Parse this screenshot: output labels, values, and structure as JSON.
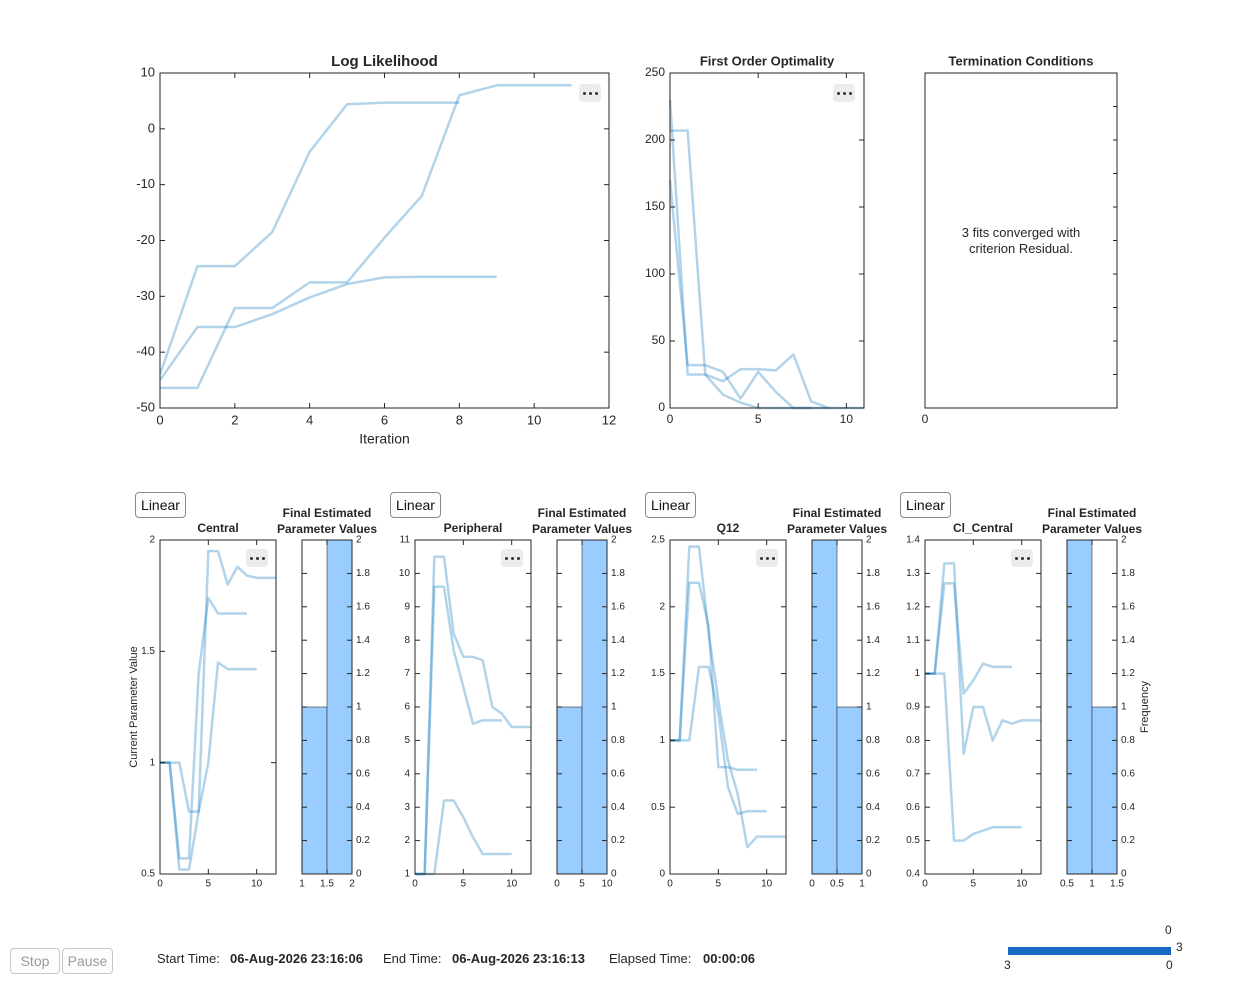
{
  "chart_data": [
    {
      "type": "line",
      "title": "Log Likelihood",
      "xlabel": "Iteration",
      "color": "#0072bd",
      "opacity": 0.3,
      "x": [
        0,
        1,
        2,
        3,
        4,
        5,
        6,
        7,
        8,
        9,
        10,
        11
      ],
      "xlim": [
        0,
        12
      ],
      "xticks": [
        0,
        2,
        4,
        6,
        8,
        10,
        12
      ],
      "ylim": [
        -50,
        10
      ],
      "yticks": [
        -50,
        -40,
        -30,
        -20,
        -10,
        0,
        10
      ],
      "series": [
        {
          "values": [
            -44,
            -24.6,
            -24.6,
            -18.5,
            -4.1,
            4.4,
            4.7,
            4.7,
            4.7,
            null,
            null,
            null
          ]
        },
        {
          "values": [
            -46.4,
            -46.4,
            -32.1,
            -32.1,
            -27.5,
            -27.5,
            -19.5,
            -12,
            6,
            7.8,
            7.8,
            7.8
          ]
        },
        {
          "values": [
            -45,
            -35.5,
            -35.5,
            -33.2,
            -30.2,
            -27.8,
            -26.6,
            -26.5,
            -26.5,
            -26.5,
            null,
            null
          ]
        }
      ]
    },
    {
      "type": "line",
      "title": "First Order Optimality",
      "color": "#0072bd",
      "opacity": 0.3,
      "x": [
        0,
        1,
        2,
        3,
        4,
        5,
        6,
        7,
        8,
        9,
        10,
        11
      ],
      "xlim": [
        0,
        11
      ],
      "xticks": [
        0,
        5,
        10
      ],
      "ylim": [
        0,
        250
      ],
      "yticks": [
        0,
        50,
        100,
        150,
        200,
        250
      ],
      "series": [
        {
          "values": [
            207,
            207,
            25,
            10,
            4,
            0,
            0,
            0,
            0,
            null,
            null,
            null
          ]
        },
        {
          "values": [
            230,
            25,
            25,
            20,
            29,
            29,
            28,
            40,
            5,
            0,
            0,
            0
          ]
        },
        {
          "values": [
            170,
            32,
            32,
            27,
            7,
            27,
            12,
            0,
            0,
            0,
            null,
            null
          ]
        }
      ]
    },
    {
      "type": "text",
      "title": "Termination Conditions",
      "annotation": "3 fits converged with criterion Residual.",
      "xticks": [
        0
      ]
    },
    {
      "type": "line",
      "title": "Central",
      "scale_button": "Linear",
      "ylabel": "Current Parameter Value",
      "color": "#0072bd",
      "opacity": 0.3,
      "x": [
        0,
        1,
        2,
        3,
        4,
        5,
        6,
        7,
        8,
        9,
        10,
        11,
        12
      ],
      "xlim": [
        0,
        12
      ],
      "xticks": [
        0,
        5,
        10
      ],
      "ylim": [
        0.5,
        2
      ],
      "yticks": [
        0.5,
        1,
        1.5,
        2
      ],
      "series": [
        {
          "values": [
            1,
            1,
            0.57,
            0.57,
            1.4,
            1.74,
            1.67,
            1.67,
            1.67,
            1.67,
            null,
            null,
            null
          ]
        },
        {
          "values": [
            1,
            1,
            0.52,
            0.52,
            0.78,
            1.95,
            1.95,
            1.8,
            1.88,
            1.84,
            1.83,
            1.83,
            1.83
          ]
        },
        {
          "values": [
            1,
            1,
            1,
            0.78,
            0.78,
            1.0,
            1.45,
            1.42,
            1.42,
            1.42,
            1.42,
            null,
            null
          ]
        }
      ]
    },
    {
      "type": "histogram",
      "title": "Final Estimated Parameter Values",
      "color": "#99ccff",
      "bins": [
        1,
        1.5,
        2
      ],
      "counts": [
        1,
        2
      ],
      "xlim": [
        1,
        2
      ],
      "xticks": [
        1,
        1.5,
        2
      ],
      "ylim": [
        0,
        2
      ],
      "yticks": [
        0,
        0.2,
        0.4,
        0.6,
        0.8,
        1,
        1.2,
        1.4,
        1.6,
        1.8,
        2
      ]
    },
    {
      "type": "line",
      "title": "Peripheral",
      "scale_button": "Linear",
      "color": "#0072bd",
      "opacity": 0.3,
      "x": [
        0,
        1,
        2,
        3,
        4,
        5,
        6,
        7,
        8,
        9,
        10,
        11,
        12
      ],
      "xlim": [
        0,
        12
      ],
      "xticks": [
        0,
        5,
        10
      ],
      "ylim": [
        1,
        11
      ],
      "yticks": [
        1,
        2,
        3,
        4,
        5,
        6,
        7,
        8,
        9,
        10,
        11
      ],
      "series": [
        {
          "values": [
            1,
            1,
            1,
            3.2,
            3.2,
            2.7,
            2.1,
            1.6,
            1.6,
            1.6,
            1.6,
            null,
            null
          ]
        },
        {
          "values": [
            1,
            1,
            9.6,
            9.6,
            7.7,
            6.6,
            5.5,
            5.6,
            5.6,
            5.6,
            null,
            null,
            null
          ]
        },
        {
          "values": [
            1,
            1,
            10.5,
            10.5,
            8.2,
            7.5,
            7.5,
            7.4,
            6,
            5.8,
            5.4,
            5.4,
            5.4
          ]
        }
      ]
    },
    {
      "type": "histogram",
      "title": "Final Estimated Parameter Values",
      "color": "#99ccff",
      "bins": [
        0,
        5,
        10
      ],
      "counts": [
        1,
        2
      ],
      "xlim": [
        0,
        10
      ],
      "xticks": [
        0,
        5,
        10
      ],
      "ylim": [
        0,
        2
      ],
      "yticks": [
        0,
        0.2,
        0.4,
        0.6,
        0.8,
        1,
        1.2,
        1.4,
        1.6,
        1.8,
        2
      ]
    },
    {
      "type": "line",
      "title": "Q12",
      "scale_button": "Linear",
      "color": "#0072bd",
      "opacity": 0.3,
      "x": [
        0,
        1,
        2,
        3,
        4,
        5,
        6,
        7,
        8,
        9,
        10,
        11,
        12
      ],
      "xlim": [
        0,
        12
      ],
      "xticks": [
        0,
        5,
        10
      ],
      "ylim": [
        0,
        2.5
      ],
      "yticks": [
        0,
        0.5,
        1,
        1.5,
        2,
        2.5
      ],
      "series": [
        {
          "values": [
            1,
            1,
            2.18,
            2.18,
            1.85,
            0.8,
            0.8,
            0.78,
            0.78,
            0.78,
            null,
            null,
            null
          ]
        },
        {
          "values": [
            1,
            1,
            1,
            1.55,
            1.55,
            1.2,
            0.65,
            0.45,
            0.47,
            0.47,
            0.47,
            null,
            null
          ]
        },
        {
          "values": [
            1,
            1,
            2.45,
            2.45,
            1.8,
            1.3,
            0.85,
            0.6,
            0.2,
            0.28,
            0.28,
            0.28,
            0.28
          ]
        }
      ]
    },
    {
      "type": "histogram",
      "title": "Final Estimated Parameter Values",
      "color": "#99ccff",
      "bins": [
        0,
        0.5,
        1
      ],
      "counts": [
        2,
        1
      ],
      "xlim": [
        0,
        1
      ],
      "xticks": [
        0,
        0.5,
        1
      ],
      "ylim": [
        0,
        2
      ],
      "yticks": [
        0,
        0.2,
        0.4,
        0.6,
        0.8,
        1,
        1.2,
        1.4,
        1.6,
        1.8,
        2
      ]
    },
    {
      "type": "line",
      "title": "Cl_Central",
      "scale_button": "Linear",
      "color": "#0072bd",
      "opacity": 0.3,
      "x": [
        0,
        1,
        2,
        3,
        4,
        5,
        6,
        7,
        8,
        9,
        10,
        11,
        12
      ],
      "xlim": [
        0,
        12
      ],
      "xticks": [
        0,
        5,
        10
      ],
      "ylim": [
        0.4,
        1.4
      ],
      "yticks": [
        0.4,
        0.5,
        0.6,
        0.7,
        0.8,
        0.9,
        1,
        1.1,
        1.2,
        1.3,
        1.4
      ],
      "series": [
        {
          "values": [
            1,
            1,
            1.27,
            1.27,
            0.94,
            0.98,
            1.03,
            1.02,
            1.02,
            1.02,
            null,
            null,
            null
          ]
        },
        {
          "values": [
            1,
            1,
            1.33,
            1.33,
            0.76,
            0.9,
            0.9,
            0.8,
            0.86,
            0.85,
            0.86,
            0.86,
            0.86
          ]
        },
        {
          "values": [
            1,
            1,
            1,
            0.5,
            0.5,
            0.52,
            0.53,
            0.54,
            0.54,
            0.54,
            0.54,
            null,
            null
          ]
        }
      ]
    },
    {
      "type": "histogram",
      "title": "Final Estimated Parameter Values",
      "ylabel": "Frequency",
      "color": "#99ccff",
      "bins": [
        0.5,
        1,
        1.5
      ],
      "counts": [
        2,
        1
      ],
      "xlim": [
        0.5,
        1.5
      ],
      "xticks": [
        0.5,
        1,
        1.5
      ],
      "ylim": [
        0,
        2
      ],
      "yticks": [
        0,
        0.2,
        0.4,
        0.6,
        0.8,
        1,
        1.2,
        1.4,
        1.6,
        1.8,
        2
      ]
    }
  ],
  "status": {
    "stop": "Stop",
    "pause": "Pause",
    "start_label": "Start Time:",
    "start": "06-Aug-2026 23:16:06",
    "end_label": "End Time:",
    "end": "06-Aug-2026 23:16:13",
    "elapsed_label": "Elapsed Time:",
    "elapsed": "00:00:06",
    "progress": {
      "top": 0,
      "right": 3,
      "bottom_left": 3,
      "bottom_right": 0,
      "color": "#1769c2"
    }
  }
}
